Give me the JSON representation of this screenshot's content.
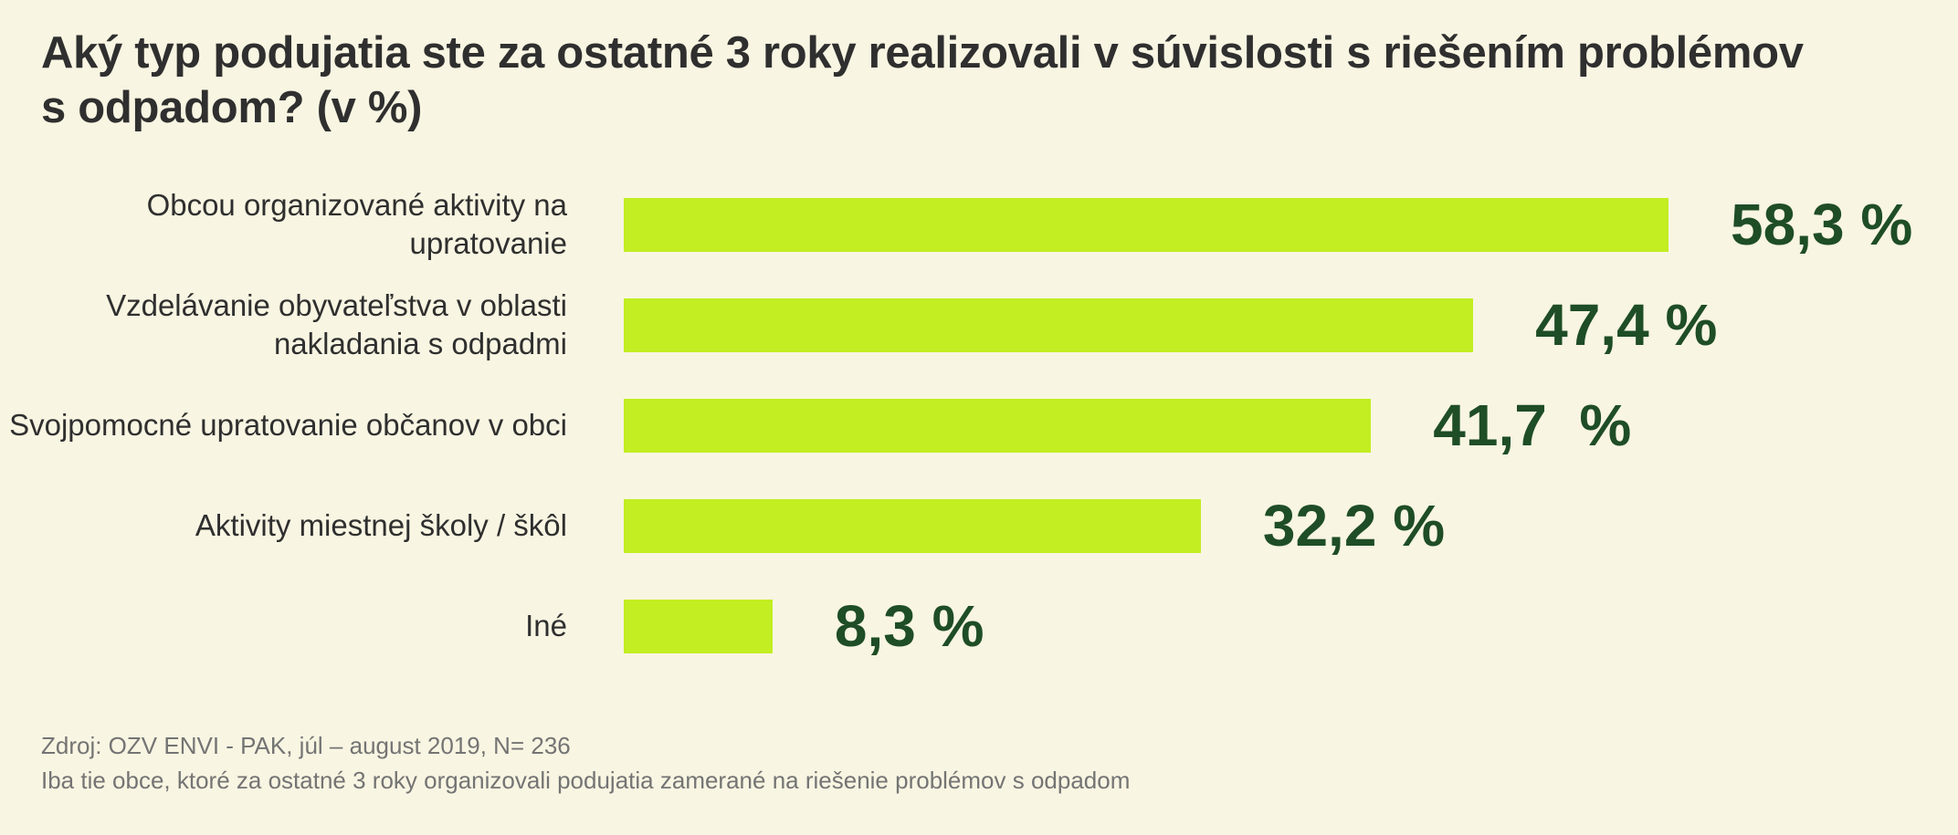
{
  "title": "Aký typ podujatia ste za ostatné 3 roky realizovali v súvislosti s riešením problémov s odpadom? (v %)",
  "chart_data": {
    "type": "bar",
    "orientation": "horizontal",
    "categories": [
      "Obcou organizované aktivity na upratovanie",
      "Vzdelávanie obyvateľstva v oblasti nakladania s odpadmi",
      "Svojpomocné upratovanie občanov v obci",
      "Aktivity miestnej školy / škôl",
      "Iné"
    ],
    "values": [
      58.3,
      47.4,
      41.7,
      32.2,
      8.3
    ],
    "value_labels": [
      "58,3 %",
      "47,4 %",
      "41,7  %",
      "32,2 %",
      "8,3 %"
    ],
    "unit": "%",
    "grid": false,
    "legend": "none",
    "colors": {
      "bar": "#c2ee22",
      "value_text": "#1e4d26",
      "background": "#f8f5e2"
    }
  },
  "footer": {
    "source": "Zdroj: OZV ENVI - PAK, júl – august 2019, N= 236",
    "note": "Iba tie obce, ktoré za ostatné 3 roky organizovali podujatia zamerané na riešenie problémov s odpadom"
  }
}
